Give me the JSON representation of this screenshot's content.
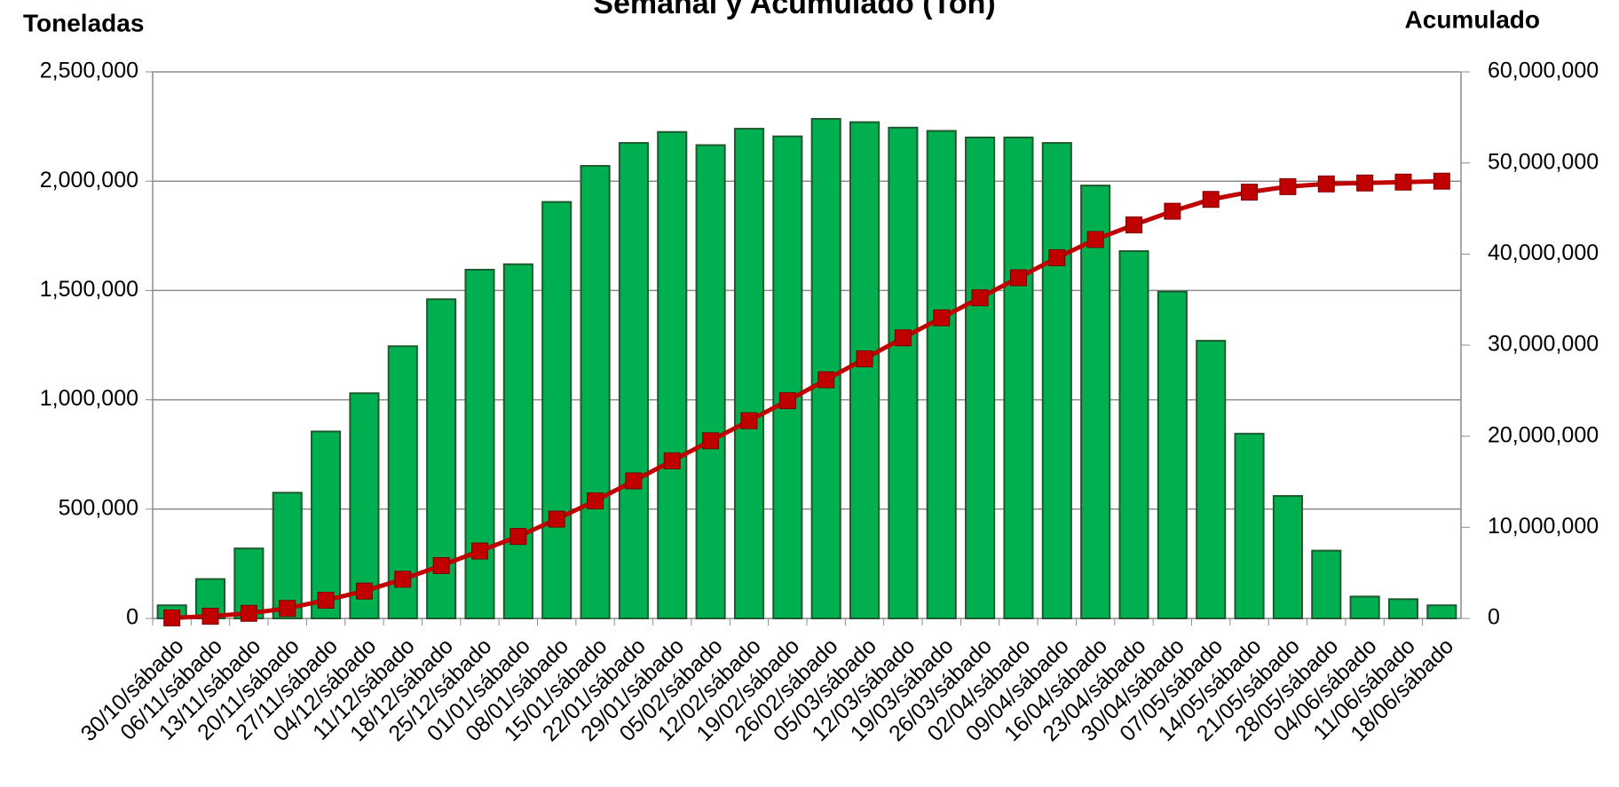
{
  "chart_data": {
    "type": "bar_line",
    "title": "Semanal y Acumulado (Ton)",
    "y_label": "Toneladas",
    "y2_label": "Acumulado",
    "categories": [
      "30/10/sábado",
      "06/11/sábado",
      "13/11/sábado",
      "20/11/sábado",
      "27/11/sábado",
      "04/12/sábado",
      "11/12/sábado",
      "18/12/sábado",
      "25/12/sábado",
      "01/01/sábado",
      "08/01/sábado",
      "15/01/sábado",
      "22/01/sábado",
      "29/01/sábado",
      "05/02/sábado",
      "12/02/sábado",
      "19/02/sábado",
      "26/02/sábado",
      "05/03/sábado",
      "12/03/sábado",
      "19/03/sábado",
      "26/03/sábado",
      "02/04/sábado",
      "09/04/sábado",
      "16/04/sábado",
      "23/04/sábado",
      "30/04/sábado",
      "07/05/sábado",
      "14/05/sábado",
      "21/05/sábado",
      "28/05/sábado",
      "04/06/sábado",
      "11/06/sábado",
      "18/06/sábado"
    ],
    "series": [
      {
        "type": "bar",
        "color": "#00b050",
        "values": [
          60000,
          180000,
          320000,
          575000,
          855000,
          1030000,
          1245000,
          1460000,
          1595000,
          1620000,
          1905000,
          2070000,
          2175000,
          2225000,
          2165000,
          2240000,
          2205000,
          2285000,
          2270000,
          2245000,
          2230000,
          2200000,
          2200000,
          2175000,
          1980000,
          1680000,
          1495000,
          1270000,
          845000,
          560000,
          310000,
          100000,
          88000,
          60000
        ]
      },
      {
        "type": "line",
        "axis": "y2",
        "color": "#c00000",
        "values": [
          60000,
          240000,
          560000,
          1100000,
          2000000,
          3000000,
          4300000,
          5800000,
          7400000,
          9000000,
          10900000,
          12900000,
          15100000,
          17300000,
          19500000,
          21700000,
          23900000,
          26200000,
          28500000,
          30800000,
          33000000,
          35200000,
          37400000,
          39600000,
          41600000,
          43200000,
          44700000,
          46000000,
          46800000,
          47400000,
          47700000,
          47800000,
          47900000,
          48000000
        ]
      }
    ],
    "ylim": [
      0,
      2500000
    ],
    "yticks": [
      0,
      {
        "value": 500000,
        "label": "500,000"
      },
      {
        "value": 1000000,
        "label": "1,000,000"
      },
      {
        "value": 1500000,
        "label": "1,500,000"
      },
      {
        "value": 2000000,
        "label": "2,000,000"
      },
      {
        "value": 2500000,
        "label": "2,500,000"
      }
    ],
    "y2lim": [
      0,
      60000000
    ],
    "y2ticks": [
      0,
      {
        "value": 10000000,
        "label": "10,000,000"
      },
      {
        "value": 20000000,
        "label": "20,000,000"
      },
      {
        "value": 30000000,
        "label": "30,000,000"
      },
      {
        "value": 40000000,
        "label": "40,000,000"
      },
      {
        "value": 50000000,
        "label": "50,000,000"
      },
      {
        "value": 60000000,
        "label": "60,000,000"
      }
    ],
    "grid": true
  }
}
